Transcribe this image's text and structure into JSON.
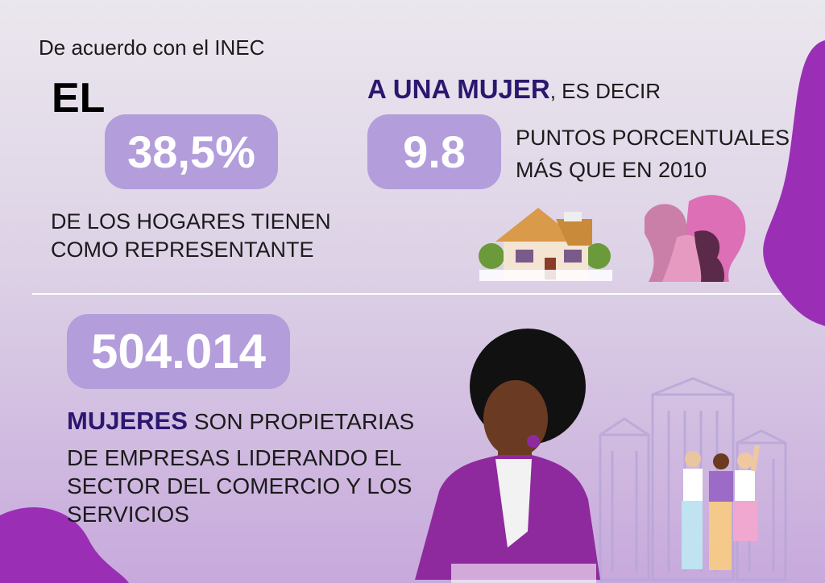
{
  "source": "De acuerdo con el INEC",
  "left": {
    "lead": "EL",
    "stat": "38,5%",
    "text_lines": [
      "DE LOS HOGARES TIENEN",
      "COMO REPRESENTANTE"
    ]
  },
  "right": {
    "highlight": "A UNA MUJER",
    "rest": ", ES DECIR",
    "stat": "9.8",
    "text_lines": [
      "PUNTOS PORCENTUALES",
      "MÁS QUE EN 2010"
    ]
  },
  "bottom": {
    "stat": "504.014",
    "highlight": "MUJERES",
    "rest": "SON PROPIETARIAS",
    "text_lines": [
      "DE EMPRESAS LIDERANDO EL",
      "SECTOR DEL COMERCIO Y LOS",
      "SERVICIOS"
    ]
  }
}
